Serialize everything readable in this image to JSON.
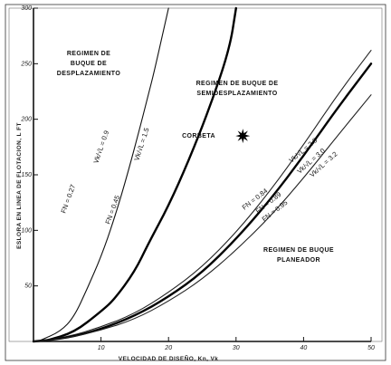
{
  "chart_data": {
    "type": "line",
    "title": "",
    "xlabel": "VELOCIDAD DE DISEÑO, Kn, Vk",
    "ylabel": "ESLORA EN LINEA DE FLOTACION, L FT",
    "xlim": [
      0,
      50
    ],
    "ylim": [
      0,
      300
    ],
    "x_ticks": [
      "10",
      "20",
      "30",
      "40",
      "50"
    ],
    "y_ticks": [
      "50",
      "100",
      "150",
      "200",
      "250",
      "300"
    ],
    "grid": false,
    "legend": "none",
    "series": [
      {
        "name": "Vk/√L = 0.9",
        "color": "#111111",
        "points": [
          [
            1,
            1
          ],
          [
            4,
            9
          ],
          [
            6,
            22
          ],
          [
            8,
            48
          ],
          [
            10,
            76
          ],
          [
            12,
            111
          ],
          [
            14,
            152
          ],
          [
            16,
            198
          ],
          [
            17,
            222
          ],
          [
            18,
            246
          ],
          [
            20,
            300
          ]
        ]
      },
      {
        "name": "Vk/√L = 1.5",
        "color": "#000000",
        "points": [
          [
            2,
            1
          ],
          [
            6,
            8
          ],
          [
            10,
            27
          ],
          [
            12,
            38
          ],
          [
            15,
            63
          ],
          [
            17,
            88
          ],
          [
            20,
            122
          ],
          [
            23,
            163
          ],
          [
            26,
            209
          ],
          [
            29,
            262
          ],
          [
            30,
            300
          ]
        ]
      },
      {
        "name": "Vk/√L = 2.8",
        "color": "#222222",
        "points": [
          [
            0,
            0
          ],
          [
            5,
            4
          ],
          [
            10,
            13
          ],
          [
            15,
            25
          ],
          [
            20,
            44
          ],
          [
            25,
            67
          ],
          [
            30,
            98
          ],
          [
            35,
            135
          ],
          [
            40,
            177
          ],
          [
            45,
            222
          ],
          [
            50,
            262
          ]
        ]
      },
      {
        "name": "Vk/√L = 3.0",
        "color": "#000000",
        "points": [
          [
            0,
            0
          ],
          [
            5,
            3
          ],
          [
            10,
            11
          ],
          [
            15,
            23
          ],
          [
            20,
            40
          ],
          [
            25,
            62
          ],
          [
            30,
            92
          ],
          [
            35,
            127
          ],
          [
            40,
            167
          ],
          [
            45,
            210
          ],
          [
            50,
            250
          ]
        ]
      },
      {
        "name": "Vk/√L = 3.2",
        "color": "#222222",
        "points": [
          [
            0,
            0
          ],
          [
            5,
            3
          ],
          [
            10,
            10
          ],
          [
            15,
            20
          ],
          [
            20,
            36
          ],
          [
            25,
            56
          ],
          [
            30,
            82
          ],
          [
            35,
            112
          ],
          [
            40,
            147
          ],
          [
            45,
            185
          ],
          [
            50,
            222
          ]
        ]
      }
    ],
    "markers": [
      {
        "label": "CORBETA",
        "x": 31,
        "y": 185,
        "color": "#000000"
      }
    ],
    "curve_labels": [
      {
        "text": "Vk/√L = 0.9"
      },
      {
        "text": "Vk/√L = 1.5"
      },
      {
        "text": "Vk/√L = 2.8"
      },
      {
        "text": "Vk/√L = 3.0"
      },
      {
        "text": "Vk/√L = 3.2"
      },
      {
        "text": "FN = 0.27"
      },
      {
        "text": "FN = 0.45"
      },
      {
        "text": "FN = 0.84"
      },
      {
        "text": "FN = 0.89"
      },
      {
        "text": "FN = 0.95"
      }
    ],
    "regions": {
      "displacement": [
        "REGIMEN DE",
        "BUQUE DE",
        "DESPLAZAMIENTO"
      ],
      "semi_displacement": [
        "REGIMEN DE BUQUE DE",
        "SEMIDESPLAZAMIENTO"
      ],
      "planing": [
        "REGIMEN DE BUQUE",
        "PLANEADOR"
      ]
    }
  }
}
